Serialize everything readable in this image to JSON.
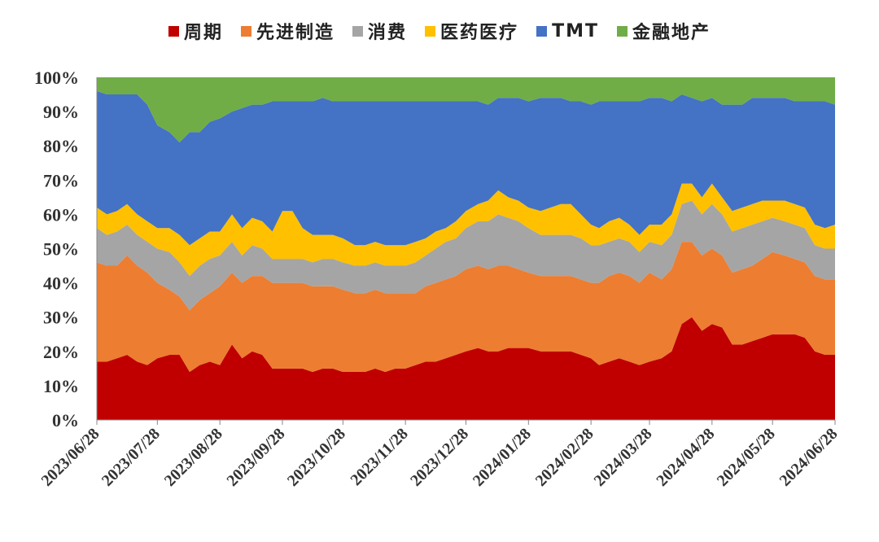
{
  "chart_data": {
    "type": "area",
    "stacked": true,
    "normalized": true,
    "title": "",
    "xlabel": "",
    "ylabel": "",
    "ylim": [
      0,
      100
    ],
    "y_ticks": [
      "0%",
      "10%",
      "20%",
      "30%",
      "40%",
      "50%",
      "60%",
      "70%",
      "80%",
      "90%",
      "100%"
    ],
    "x_ticks": [
      "2023/06/28",
      "2023/07/28",
      "2023/08/28",
      "2023/09/28",
      "2023/10/28",
      "2023/11/28",
      "2023/12/28",
      "2024/01/28",
      "2024/02/28",
      "2024/03/28",
      "2024/04/28",
      "2024/05/28",
      "2024/06/28"
    ],
    "legend_position": "top",
    "grid": false,
    "x": [
      "2023/06/28",
      "2023/07/03",
      "2023/07/08",
      "2023/07/13",
      "2023/07/18",
      "2023/07/23",
      "2023/07/28",
      "2023/08/03",
      "2023/08/08",
      "2023/08/13",
      "2023/08/18",
      "2023/08/23",
      "2023/08/28",
      "2023/09/03",
      "2023/09/08",
      "2023/09/13",
      "2023/09/18",
      "2023/09/23",
      "2023/09/28",
      "2023/10/03",
      "2023/10/08",
      "2023/10/13",
      "2023/10/18",
      "2023/10/23",
      "2023/10/28",
      "2023/11/03",
      "2023/11/08",
      "2023/11/13",
      "2023/11/18",
      "2023/11/23",
      "2023/11/28",
      "2023/12/03",
      "2023/12/08",
      "2023/12/13",
      "2023/12/18",
      "2023/12/23",
      "2023/12/28",
      "2024/01/03",
      "2024/01/08",
      "2024/01/13",
      "2024/01/18",
      "2024/01/23",
      "2024/01/28",
      "2024/02/03",
      "2024/02/08",
      "2024/02/13",
      "2024/02/18",
      "2024/02/23",
      "2024/02/28",
      "2024/03/03",
      "2024/03/08",
      "2024/03/13",
      "2024/03/18",
      "2024/03/23",
      "2024/03/28",
      "2024/04/03",
      "2024/04/08",
      "2024/04/13",
      "2024/04/18",
      "2024/04/23",
      "2024/04/28",
      "2024/05/03",
      "2024/05/08",
      "2024/05/13",
      "2024/05/18",
      "2024/05/23",
      "2024/05/28",
      "2024/06/03",
      "2024/06/08",
      "2024/06/13",
      "2024/06/18",
      "2024/06/23",
      "2024/06/28"
    ],
    "series": [
      {
        "name": "周期",
        "color": "#C00000",
        "values": [
          17,
          17,
          18,
          19,
          17,
          16,
          18,
          19,
          19,
          14,
          16,
          17,
          16,
          22,
          18,
          20,
          19,
          15,
          15,
          15,
          15,
          14,
          15,
          15,
          14,
          14,
          14,
          15,
          14,
          15,
          15,
          16,
          17,
          17,
          18,
          19,
          20,
          21,
          20,
          20,
          21,
          21,
          21,
          20,
          20,
          20,
          20,
          19,
          18,
          16,
          17,
          18,
          17,
          16,
          17,
          18,
          20,
          28,
          30,
          26,
          28,
          27,
          22,
          22,
          23,
          24,
          25,
          25,
          25,
          24,
          20,
          19,
          19
        ]
      },
      {
        "name": "先进制造",
        "color": "#ED7D31",
        "values": [
          29,
          28,
          27,
          29,
          28,
          27,
          22,
          19,
          17,
          18,
          19,
          20,
          23,
          21,
          22,
          22,
          23,
          25,
          25,
          25,
          25,
          25,
          24,
          24,
          24,
          23,
          23,
          23,
          23,
          22,
          22,
          21,
          22,
          23,
          23,
          23,
          24,
          24,
          24,
          25,
          24,
          23,
          22,
          22,
          22,
          22,
          22,
          22,
          22,
          24,
          25,
          25,
          25,
          24,
          26,
          23,
          24,
          24,
          22,
          22,
          22,
          21,
          21,
          22,
          22,
          23,
          24,
          23,
          22,
          22,
          22,
          22,
          22
        ]
      },
      {
        "name": "消费",
        "color": "#A5A5A5",
        "values": [
          10,
          9,
          10,
          9,
          9,
          9,
          10,
          11,
          10,
          10,
          10,
          10,
          9,
          9,
          8,
          9,
          8,
          7,
          7,
          7,
          7,
          7,
          8,
          8,
          8,
          8,
          8,
          8,
          8,
          8,
          8,
          9,
          9,
          10,
          11,
          11,
          12,
          13,
          14,
          15,
          14,
          14,
          13,
          12,
          12,
          12,
          12,
          12,
          11,
          11,
          10,
          10,
          10,
          9,
          9,
          10,
          10,
          11,
          12,
          12,
          13,
          12,
          12,
          12,
          12,
          11,
          10,
          10,
          10,
          10,
          9,
          9,
          9
        ]
      },
      {
        "name": "医药医疗",
        "color": "#FFC000",
        "values": [
          6,
          6,
          6,
          6,
          6,
          6,
          6,
          7,
          8,
          9,
          8,
          8,
          7,
          8,
          8,
          8,
          8,
          8,
          14,
          14,
          9,
          8,
          7,
          7,
          7,
          6,
          6,
          6,
          6,
          6,
          6,
          6,
          5,
          5,
          4,
          5,
          5,
          5,
          6,
          7,
          6,
          6,
          6,
          7,
          8,
          9,
          9,
          7,
          6,
          5,
          6,
          6,
          5,
          5,
          5,
          6,
          6,
          6,
          5,
          5,
          6,
          5,
          6,
          6,
          6,
          6,
          5,
          6,
          6,
          6,
          6,
          6,
          7
        ]
      },
      {
        "name": "TMT",
        "color": "#4472C4",
        "values": [
          34,
          35,
          34,
          32,
          35,
          34,
          30,
          28,
          27,
          33,
          31,
          32,
          33,
          30,
          35,
          33,
          34,
          38,
          32,
          32,
          37,
          39,
          40,
          39,
          40,
          42,
          42,
          41,
          42,
          42,
          42,
          41,
          40,
          38,
          37,
          35,
          32,
          30,
          28,
          27,
          29,
          30,
          31,
          33,
          32,
          31,
          30,
          33,
          35,
          37,
          35,
          34,
          36,
          39,
          37,
          37,
          33,
          26,
          25,
          28,
          25,
          27,
          31,
          30,
          31,
          30,
          30,
          30,
          30,
          31,
          36,
          37,
          35
        ]
      },
      {
        "name": "金融地产",
        "color": "#70AD47",
        "values": [
          4,
          5,
          5,
          5,
          5,
          8,
          14,
          16,
          19,
          16,
          16,
          13,
          12,
          10,
          9,
          8,
          8,
          7,
          7,
          7,
          7,
          7,
          6,
          7,
          7,
          7,
          7,
          7,
          7,
          7,
          7,
          7,
          7,
          7,
          7,
          7,
          7,
          7,
          8,
          6,
          6,
          6,
          7,
          6,
          6,
          6,
          7,
          7,
          8,
          7,
          7,
          7,
          7,
          7,
          6,
          6,
          7,
          5,
          6,
          7,
          6,
          8,
          8,
          8,
          6,
          6,
          6,
          6,
          7,
          7,
          7,
          7,
          8
        ]
      }
    ]
  }
}
